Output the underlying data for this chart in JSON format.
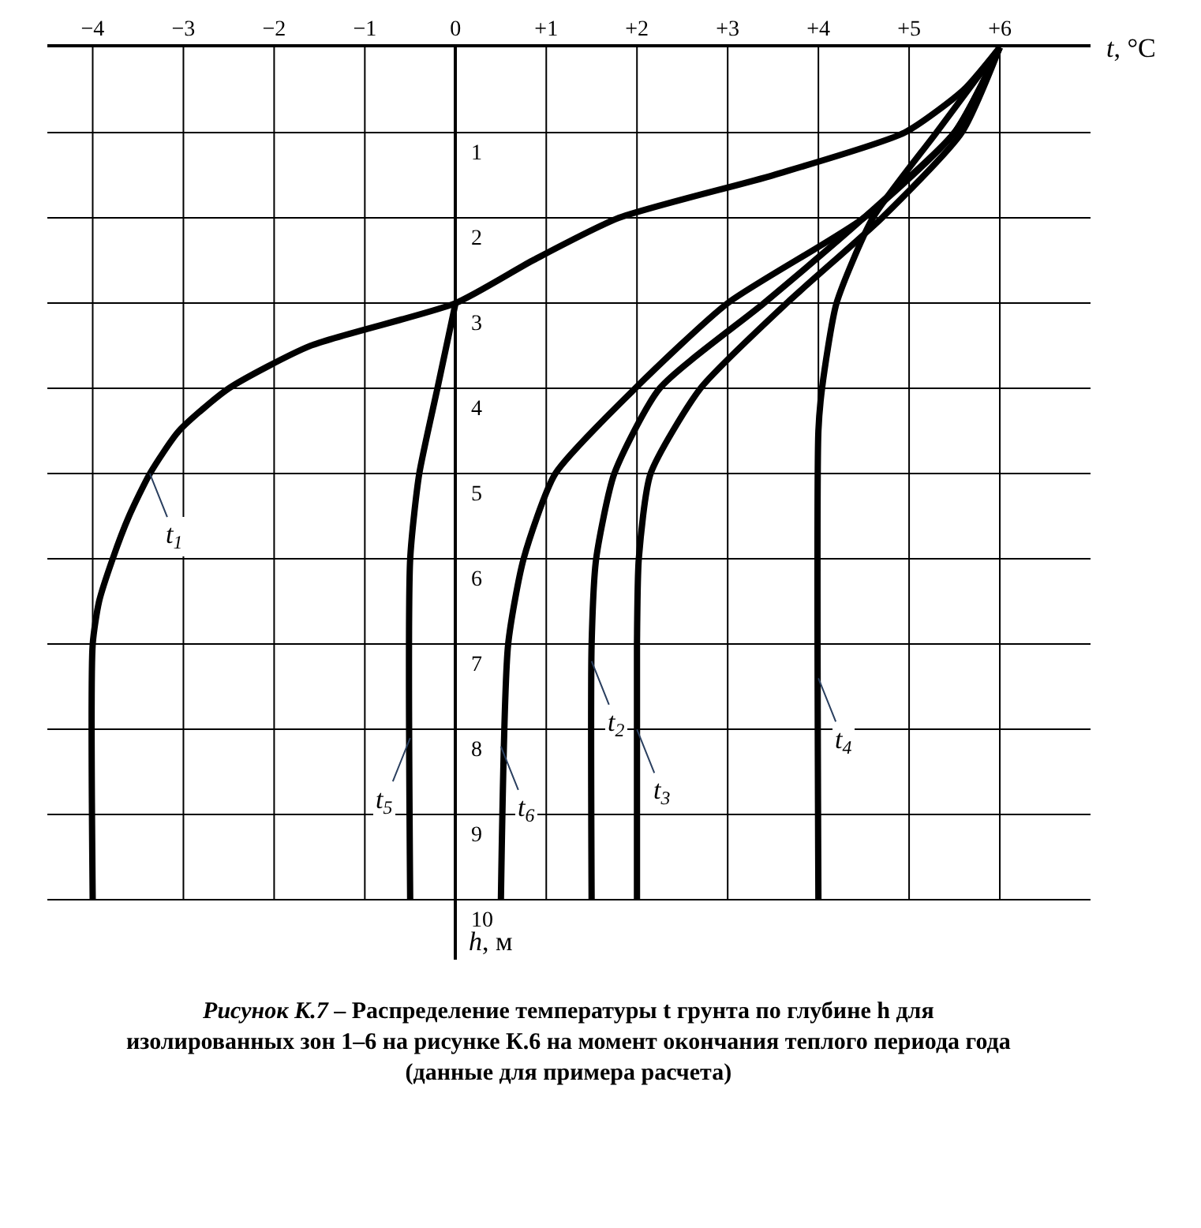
{
  "chart_data": {
    "type": "line",
    "title": "Рисунок К.7 – Распределение температуры t грунта по глубине h для изолированных зон 1–6 на рисунке К.6 на момент окончания теплого периода года (данные для примера расчета)",
    "xlabel": "t, °C",
    "ylabel": "h, м",
    "series": [
      {
        "color": "#000000",
        "x": [
          6,
          5.6,
          4.95,
          3.5,
          1.8,
          0.85,
          0,
          -1.6,
          -2.5,
          -3.05,
          -3.37,
          -3.6,
          -3.78,
          -3.93,
          -4,
          -4
        ],
        "values": [
          0,
          0.5,
          1,
          1.5,
          2,
          2.5,
          3,
          3.5,
          4,
          4.5,
          5,
          5.5,
          6,
          6.5,
          7,
          10
        ]
      },
      {
        "color": "#000000",
        "x": [
          6,
          5.5,
          4.5,
          3.4,
          2.25,
          1.75,
          1.55,
          1.5,
          1.5
        ],
        "values": [
          0,
          1,
          2,
          3,
          4,
          5,
          6,
          7,
          10
        ]
      },
      {
        "color": "#000000",
        "x": [
          6,
          5.58,
          4.7,
          3.65,
          2.7,
          2.15,
          2.02,
          2,
          2
        ],
        "values": [
          0,
          1,
          2,
          3,
          4,
          5,
          6,
          7,
          10
        ]
      },
      {
        "color": "#000000",
        "x": [
          6,
          5.3,
          4.6,
          4.2,
          4.04,
          4,
          4
        ],
        "values": [
          0,
          1,
          2,
          3,
          4,
          4.5,
          10
        ]
      },
      {
        "color": "#000000",
        "x": [
          0,
          -0.2,
          -0.4,
          -0.5,
          -0.5
        ],
        "values": [
          3,
          4,
          5,
          6,
          10
        ]
      },
      {
        "color": "#000000",
        "x": [
          6,
          5.5,
          4.5,
          3.0,
          1.98,
          1.1,
          0.75,
          0.58,
          0.5
        ],
        "values": [
          0,
          1,
          2,
          3,
          4,
          5,
          6,
          7,
          10
        ]
      }
    ],
    "annotations": [
      {
        "text": "t$_{1}$",
        "x": -3.37,
        "y": 5
      },
      {
        "text": "t$_{2}$",
        "x": 1.5,
        "y": 7.2
      },
      {
        "text": "t$_{3}$",
        "x": 2.0,
        "y": 8.0
      },
      {
        "text": "t$_{4}$",
        "x": 4.0,
        "y": 7.4
      },
      {
        "text": "t$_{5}$",
        "x": -0.5,
        "y": 8.1
      },
      {
        "text": "t$_{6}$",
        "x": 0.5,
        "y": 8.2
      }
    ],
    "xlim": [
      -4.5,
      7
    ],
    "ylim": [
      10.7,
      0
    ],
    "xticks": [
      {
        "value": -4,
        "label": "−4"
      },
      {
        "value": -3,
        "label": "−3"
      },
      {
        "value": -2,
        "label": "−2"
      },
      {
        "value": -1,
        "label": "−1"
      },
      0,
      {
        "value": 1,
        "label": "+1"
      },
      {
        "value": 2,
        "label": "+2"
      },
      {
        "value": 3,
        "label": "+3"
      },
      {
        "value": 4,
        "label": "+4"
      },
      {
        "value": 5,
        "label": "+5"
      },
      {
        "value": 6,
        "label": "+6"
      }
    ],
    "yticks": [
      1,
      2,
      3,
      4,
      5,
      6,
      7,
      8,
      9,
      10
    ],
    "grid": true,
    "line_style": "solid",
    "marker": "none"
  }
}
